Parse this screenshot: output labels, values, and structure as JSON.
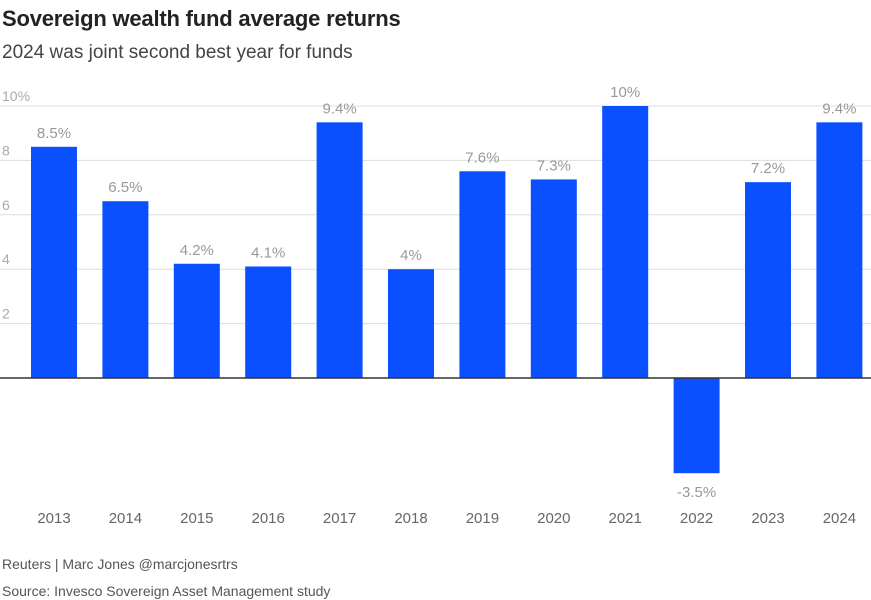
{
  "header": {
    "title": "Sovereign wealth fund average returns",
    "subtitle": "2024 was joint second best year for funds"
  },
  "footer": {
    "credit": "Reuters | Marc Jones @marcjonesrtrs",
    "source": "Source: Invesco Sovereign Asset Management study"
  },
  "colors": {
    "bar": "#0a50ff",
    "grid": "#dddddd",
    "zero_line": "#333333",
    "tick_text": "#aaaaaa",
    "label_text": "#999999",
    "category_text": "#666666"
  },
  "chart_data": {
    "type": "bar",
    "title": "Sovereign wealth fund average returns",
    "subtitle": "2024 was joint second best year for funds",
    "categories": [
      "2013",
      "2014",
      "2015",
      "2016",
      "2017",
      "2018",
      "2019",
      "2020",
      "2021",
      "2022",
      "2023",
      "2024"
    ],
    "values": [
      8.5,
      6.5,
      4.2,
      4.1,
      9.4,
      4.0,
      7.6,
      7.3,
      10.0,
      -3.5,
      7.2,
      9.4
    ],
    "data_labels": [
      "8.5%",
      "6.5%",
      "4.2%",
      "4.1%",
      "9.4%",
      "4%",
      "7.6%",
      "7.3%",
      "10%",
      "-3.5%",
      "7.2%",
      "9.4%"
    ],
    "yticks": [
      2,
      4,
      6,
      8,
      10
    ],
    "ytick_labels": [
      "2",
      "4",
      "6",
      "8",
      "10%"
    ],
    "ylim": [
      -3.5,
      10
    ],
    "grid": true,
    "xlabel": "",
    "ylabel": ""
  }
}
